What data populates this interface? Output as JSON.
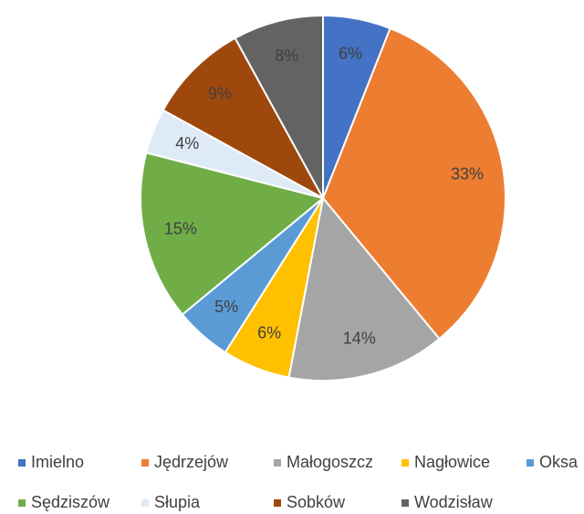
{
  "chart_data": {
    "type": "pie",
    "categories": [
      "Imielno",
      "Jędrzejów",
      "Małogoszcz",
      "Nagłowice",
      "Oksa",
      "Sędziszów",
      "Słupia",
      "Sobków",
      "Wodzisław"
    ],
    "values": [
      6,
      33,
      14,
      6,
      5,
      15,
      4,
      9,
      8
    ],
    "value_labels": [
      "6%",
      "33%",
      "14%",
      "6%",
      "5%",
      "15%",
      "4%",
      "9%",
      "8%"
    ],
    "colors": [
      "#4472c4",
      "#ed7d31",
      "#a5a5a5",
      "#ffc000",
      "#5b9bd5",
      "#70ad47",
      "#deebf7",
      "#9e480e",
      "#636363"
    ],
    "legend": "bottom"
  }
}
